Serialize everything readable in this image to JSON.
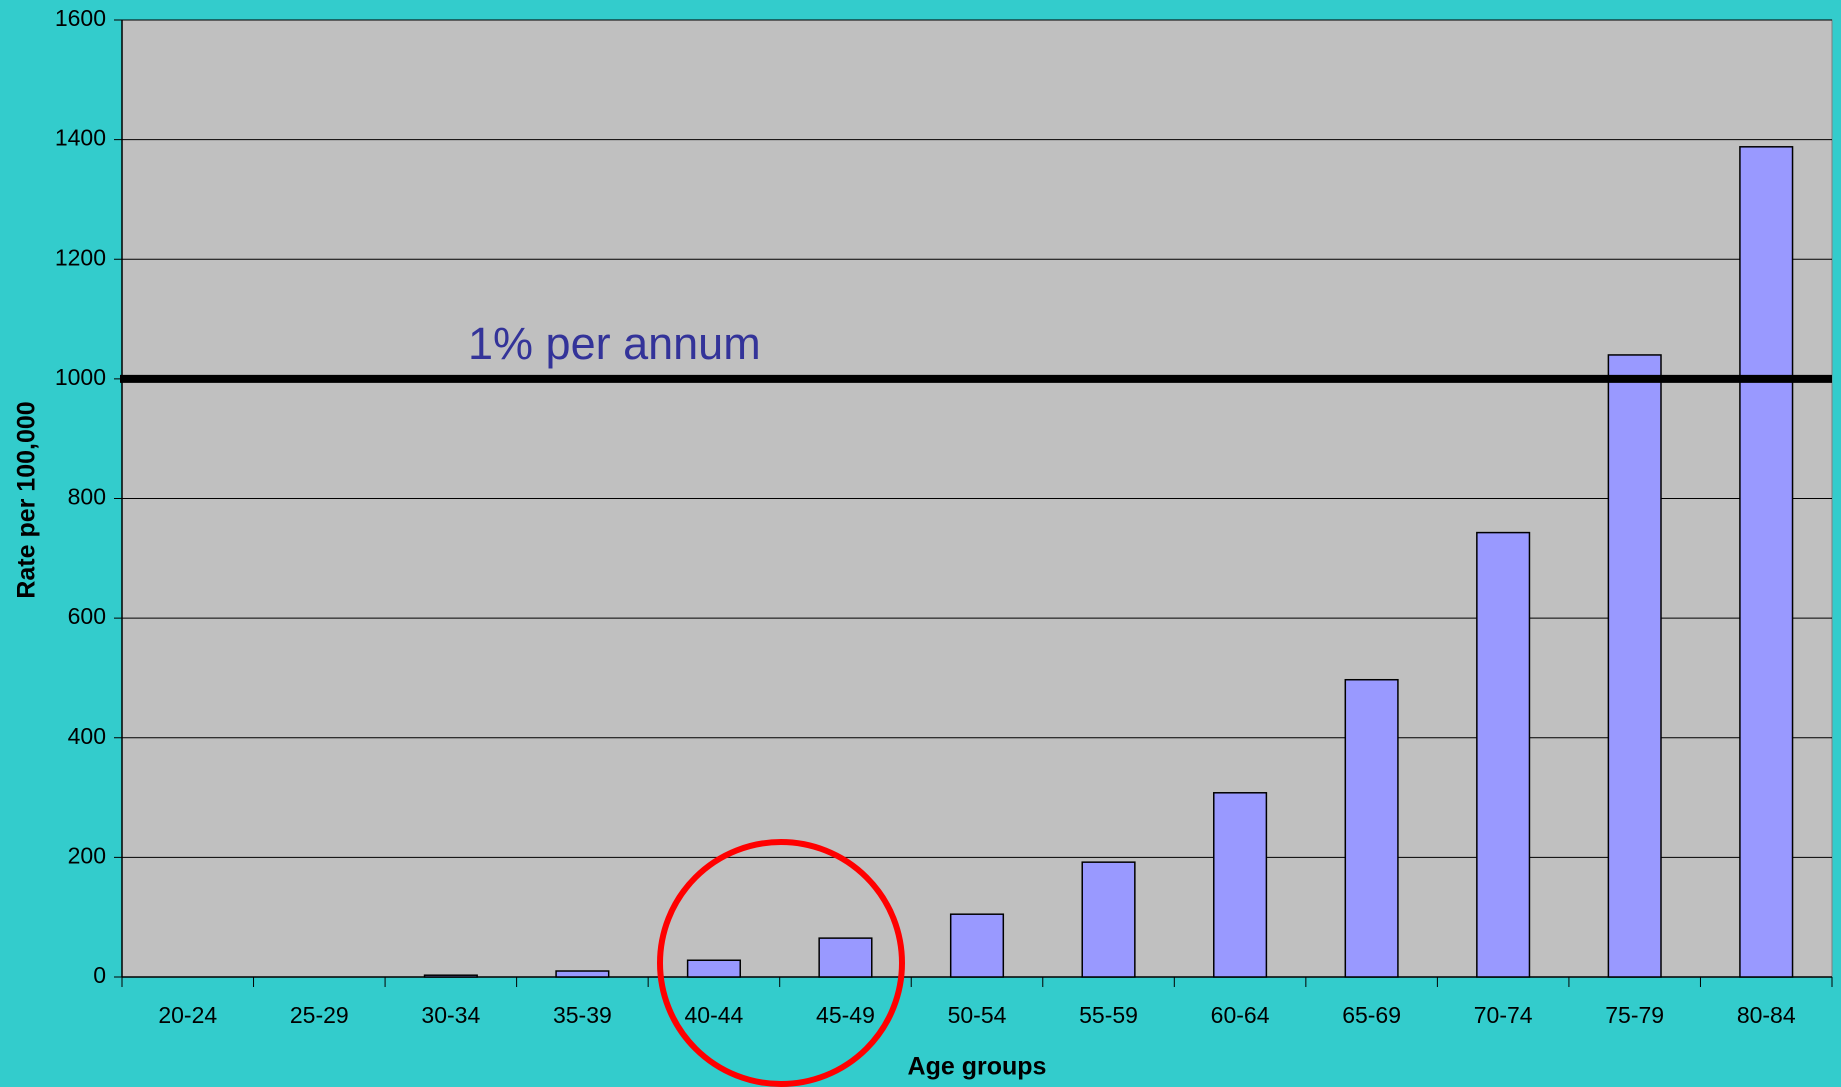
{
  "chart_data": {
    "type": "bar",
    "categories": [
      "20-24",
      "25-29",
      "30-34",
      "35-39",
      "40-44",
      "45-49",
      "50-54",
      "55-59",
      "60-64",
      "65-69",
      "70-74",
      "75-79",
      "80-84"
    ],
    "values": [
      0,
      0,
      3,
      10,
      28,
      65,
      105,
      192,
      308,
      497,
      743,
      1040,
      1388
    ],
    "color": "#9999ff",
    "ylim": [
      0,
      1600
    ],
    "yticks": [
      0,
      200,
      400,
      600,
      800,
      1000,
      1200,
      1400,
      1600
    ],
    "grid": true,
    "x_label": "Age groups",
    "y_label": "Rate per 100,000",
    "reference_line": {
      "value": 1000,
      "label": "1% per annum"
    }
  }
}
